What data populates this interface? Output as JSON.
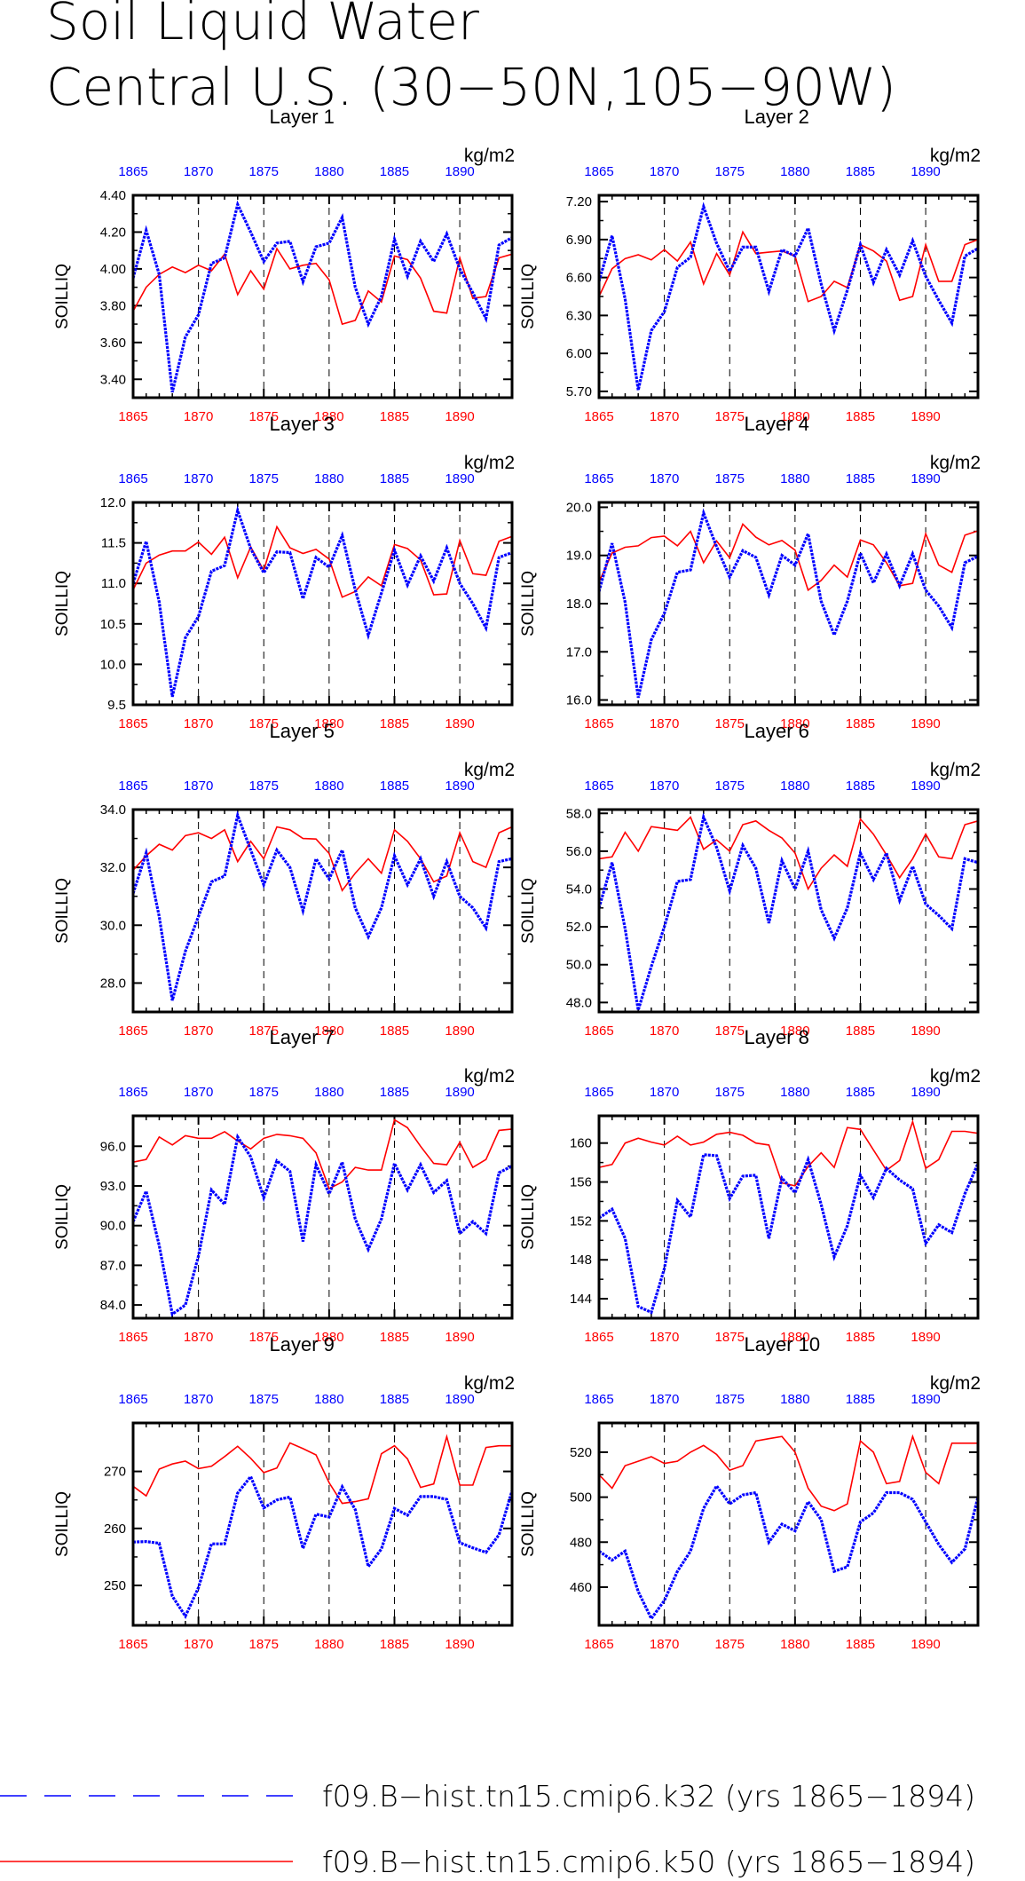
{
  "title": [
    "Soil Liquid Water",
    "Central U.S. (30−50N,105−90W)"
  ],
  "units": "kg/m2",
  "ylabel": "SOILLIQ",
  "colors": {
    "k32": "#0000ff",
    "k50": "#ff0000"
  },
  "xaxis": {
    "range": [
      1865,
      1894
    ],
    "ticks": [
      1865,
      1870,
      1875,
      1880,
      1885,
      1890
    ],
    "dashed_gridlines": [
      1870,
      1875,
      1880,
      1885,
      1890
    ]
  },
  "legend": [
    {
      "label": "f09.B−hist.tn15.cmip6.k32 (yrs 1865−1894)",
      "style": "dashed",
      "color": "#0000ff"
    },
    {
      "label": "f09.B−hist.tn15.cmip6.k50 (yrs 1865−1894)",
      "style": "solid",
      "color": "#ff0000"
    }
  ],
  "chart_data": [
    {
      "type": "line",
      "title": "Layer 1",
      "ylabel": "SOILLIQ",
      "units": "kg/m2",
      "ylim": [
        3.3,
        4.4
      ],
      "yticks": [
        3.4,
        3.6,
        3.8,
        4.0,
        4.2,
        4.4
      ],
      "ytick_labels": [
        "3.40",
        "3.60",
        "3.80",
        "4.00",
        "4.20",
        "4.40"
      ],
      "series": [
        {
          "values": [
            3.95,
            4.21,
            3.97,
            3.33,
            3.63,
            3.75,
            4.03,
            4.06,
            4.35,
            4.2,
            4.04,
            4.14,
            4.15,
            3.93,
            4.12,
            4.14,
            4.28,
            3.9,
            3.7,
            3.85,
            4.16,
            3.96,
            4.15,
            4.04,
            4.19,
            4.0,
            3.87,
            3.73,
            4.13,
            4.17
          ]
        },
        {
          "values": [
            3.77,
            3.9,
            3.97,
            4.01,
            3.98,
            4.02,
            3.99,
            4.08,
            3.86,
            3.99,
            3.89,
            4.11,
            4.0,
            4.02,
            4.03,
            3.94,
            3.7,
            3.72,
            3.88,
            3.82,
            4.07,
            4.05,
            3.95,
            3.77,
            3.76,
            4.06,
            3.84,
            3.85,
            4.06,
            4.08
          ]
        }
      ]
    },
    {
      "type": "line",
      "title": "Layer 2",
      "ylabel": "SOILLIQ",
      "units": "kg/m2",
      "ylim": [
        5.65,
        7.25
      ],
      "yticks": [
        5.7,
        6.0,
        6.3,
        6.6,
        6.9,
        7.2
      ],
      "ytick_labels": [
        "5.70",
        "6.00",
        "6.30",
        "6.60",
        "6.90",
        "7.20"
      ],
      "series": [
        {
          "values": [
            6.57,
            6.93,
            6.43,
            5.71,
            6.18,
            6.33,
            6.68,
            6.76,
            7.16,
            6.87,
            6.65,
            6.84,
            6.84,
            6.49,
            6.82,
            6.77,
            6.99,
            6.55,
            6.18,
            6.5,
            6.86,
            6.56,
            6.82,
            6.62,
            6.89,
            6.61,
            6.42,
            6.24,
            6.77,
            6.83
          ]
        },
        {
          "values": [
            6.45,
            6.67,
            6.75,
            6.78,
            6.74,
            6.82,
            6.73,
            6.88,
            6.55,
            6.79,
            6.62,
            6.96,
            6.79,
            6.8,
            6.81,
            6.77,
            6.41,
            6.45,
            6.57,
            6.52,
            6.86,
            6.81,
            6.73,
            6.42,
            6.45,
            6.86,
            6.57,
            6.57,
            6.86,
            6.9
          ]
        }
      ]
    },
    {
      "type": "line",
      "title": "Layer 3",
      "ylabel": "SOILLIQ",
      "units": "kg/m2",
      "ylim": [
        9.5,
        12.0
      ],
      "yticks": [
        9.5,
        10.0,
        10.5,
        11.0,
        11.5,
        12.0
      ],
      "ytick_labels": [
        "9.5",
        "10.0",
        "10.5",
        "11.0",
        "11.5",
        "12.0"
      ],
      "series": [
        {
          "values": [
            11.0,
            11.52,
            10.77,
            9.6,
            10.33,
            10.59,
            11.15,
            11.22,
            11.9,
            11.43,
            11.13,
            11.39,
            11.38,
            10.81,
            11.32,
            11.2,
            11.59,
            10.92,
            10.36,
            10.88,
            11.41,
            10.98,
            11.34,
            11.03,
            11.44,
            11.0,
            10.75,
            10.45,
            11.32,
            11.38
          ]
        },
        {
          "values": [
            10.92,
            11.25,
            11.35,
            11.4,
            11.4,
            11.51,
            11.36,
            11.57,
            11.07,
            11.45,
            11.16,
            11.7,
            11.44,
            11.37,
            11.42,
            11.3,
            10.83,
            10.9,
            11.08,
            10.97,
            11.48,
            11.43,
            11.29,
            10.86,
            10.87,
            11.53,
            11.12,
            11.1,
            11.52,
            11.58
          ]
        }
      ]
    },
    {
      "type": "line",
      "title": "Layer 4",
      "ylabel": "SOILLIQ",
      "units": "kg/m2",
      "ylim": [
        15.9,
        20.1
      ],
      "yticks": [
        16.0,
        17.0,
        18.0,
        19.0,
        20.0
      ],
      "ytick_labels": [
        "16.0",
        "17.0",
        "18.0",
        "19.0",
        "20.0"
      ],
      "series": [
        {
          "values": [
            18.25,
            19.25,
            18.03,
            16.05,
            17.25,
            17.8,
            18.65,
            18.7,
            19.88,
            19.18,
            18.55,
            19.1,
            18.96,
            18.18,
            19.0,
            18.8,
            19.45,
            18.05,
            17.35,
            18.05,
            19.05,
            18.43,
            19.03,
            18.37,
            19.03,
            18.28,
            17.95,
            17.5,
            18.85,
            18.98
          ]
        },
        {
          "values": [
            18.45,
            19.05,
            19.17,
            19.2,
            19.37,
            19.4,
            19.2,
            19.5,
            18.85,
            19.3,
            18.95,
            19.65,
            19.38,
            19.22,
            19.31,
            19.11,
            18.28,
            18.48,
            18.8,
            18.55,
            19.32,
            19.22,
            18.85,
            18.37,
            18.42,
            19.45,
            18.8,
            18.65,
            19.42,
            19.51
          ]
        }
      ]
    },
    {
      "type": "line",
      "title": "Layer 5",
      "ylabel": "SOILLIQ",
      "units": "kg/m2",
      "ylim": [
        27.0,
        34.0
      ],
      "yticks": [
        28.0,
        30.0,
        32.0,
        34.0
      ],
      "ytick_labels": [
        "28.0",
        "30.0",
        "32.0",
        "34.0"
      ],
      "series": [
        {
          "values": [
            31.1,
            32.5,
            30.3,
            27.4,
            29.1,
            30.3,
            31.5,
            31.7,
            33.8,
            32.6,
            31.4,
            32.6,
            32.0,
            30.5,
            32.3,
            31.6,
            32.6,
            30.6,
            29.6,
            30.6,
            32.4,
            31.4,
            32.3,
            31.0,
            32.2,
            31.0,
            30.6,
            29.9,
            32.2,
            32.3
          ]
        },
        {
          "values": [
            31.9,
            32.4,
            32.8,
            32.6,
            33.1,
            33.2,
            33.0,
            33.3,
            32.2,
            32.9,
            32.3,
            33.4,
            33.3,
            33.0,
            32.98,
            32.48,
            31.2,
            31.8,
            32.3,
            31.8,
            33.3,
            32.9,
            32.3,
            31.5,
            31.7,
            33.2,
            32.2,
            32.0,
            33.2,
            33.4
          ]
        }
      ]
    },
    {
      "type": "line",
      "title": "Layer 6",
      "ylabel": "SOILLIQ",
      "units": "kg/m2",
      "ylim": [
        47.5,
        58.2
      ],
      "yticks": [
        48.0,
        50.0,
        52.0,
        54.0,
        56.0,
        58.0
      ],
      "ytick_labels": [
        "48.0",
        "50.0",
        "52.0",
        "54.0",
        "56.0",
        "58.0"
      ],
      "series": [
        {
          "values": [
            53.0,
            55.4,
            51.9,
            47.6,
            49.9,
            52.0,
            54.4,
            54.5,
            57.8,
            56.2,
            53.9,
            56.3,
            55.1,
            52.2,
            55.5,
            54.0,
            56.0,
            52.9,
            51.4,
            53.0,
            55.9,
            54.5,
            55.9,
            53.4,
            55.2,
            53.2,
            52.6,
            51.9,
            55.6,
            55.4
          ]
        },
        {
          "values": [
            55.6,
            55.7,
            57.0,
            56.0,
            57.3,
            57.2,
            57.1,
            57.8,
            56.1,
            56.6,
            56.0,
            57.4,
            57.6,
            57.1,
            56.7,
            55.9,
            54.0,
            55.1,
            55.8,
            55.2,
            57.7,
            56.9,
            55.8,
            54.6,
            55.6,
            56.9,
            55.7,
            55.6,
            57.4,
            57.6
          ]
        }
      ]
    },
    {
      "type": "line",
      "title": "Layer 7",
      "ylabel": "SOILLIQ",
      "units": "kg/m2",
      "ylim": [
        83.0,
        98.3
      ],
      "yticks": [
        84.0,
        87.0,
        90.0,
        93.0,
        96.0
      ],
      "ytick_labels": [
        "84.0",
        "87.0",
        "90.0",
        "93.0",
        "96.0"
      ],
      "series": [
        {
          "values": [
            90.3,
            92.6,
            88.5,
            83.3,
            84.0,
            87.7,
            92.7,
            91.6,
            96.7,
            95.2,
            92.1,
            94.9,
            94.1,
            88.8,
            94.6,
            92.4,
            94.8,
            90.5,
            88.2,
            90.5,
            94.7,
            92.7,
            94.6,
            92.5,
            93.4,
            89.4,
            90.3,
            89.4,
            94.0,
            94.5
          ]
        },
        {
          "values": [
            94.8,
            95.0,
            96.7,
            96.1,
            96.8,
            96.6,
            96.6,
            97.1,
            96.4,
            95.8,
            96.6,
            96.9,
            96.8,
            96.6,
            95.5,
            92.8,
            93.3,
            94.4,
            94.2,
            94.2,
            98.0,
            97.4,
            96.0,
            94.7,
            94.6,
            96.3,
            94.4,
            95.0,
            97.2,
            97.3
          ]
        }
      ]
    },
    {
      "type": "line",
      "title": "Layer 8",
      "ylabel": "SOILLIQ",
      "units": "kg/m2",
      "ylim": [
        142.0,
        162.8
      ],
      "yticks": [
        144,
        148,
        152,
        156,
        160
      ],
      "ytick_labels": [
        "144",
        "148",
        "152",
        "156",
        "160"
      ],
      "series": [
        {
          "values": [
            152.3,
            153.2,
            150.2,
            143.2,
            142.6,
            147.1,
            154.1,
            152.4,
            158.8,
            158.7,
            154.3,
            156.6,
            156.7,
            150.2,
            156.4,
            154.9,
            158.3,
            153.7,
            148.3,
            151.5,
            156.7,
            154.4,
            157.4,
            156.2,
            155.3,
            149.7,
            151.6,
            150.8,
            154.8,
            157.9
          ]
        },
        {
          "values": [
            157.5,
            157.8,
            160.0,
            160.5,
            160.1,
            159.8,
            160.7,
            159.8,
            160.1,
            160.9,
            161.1,
            160.8,
            160.0,
            159.8,
            155.9,
            155.6,
            157.6,
            159.0,
            157.5,
            161.6,
            161.4,
            159.3,
            157.2,
            158.2,
            162.2,
            157.4,
            158.3,
            161.2,
            161.2,
            161.0
          ]
        }
      ]
    },
    {
      "type": "line",
      "title": "Layer 9",
      "ylabel": "SOILLIQ",
      "units": "kg/m2",
      "ylim": [
        243.0,
        278.5
      ],
      "yticks": [
        250,
        260,
        270
      ],
      "ytick_labels": [
        "250",
        "260",
        "270"
      ],
      "series": [
        {
          "values": [
            257.6,
            257.7,
            257.4,
            248.1,
            244.6,
            249.6,
            257.3,
            257.3,
            266.2,
            269.1,
            263.6,
            265.0,
            265.5,
            256.5,
            262.5,
            262.0,
            267.3,
            263.3,
            253.3,
            256.4,
            263.5,
            262.3,
            265.6,
            265.6,
            265.1,
            257.5,
            256.6,
            255.8,
            258.9,
            266.6
          ]
        },
        {
          "values": [
            267.4,
            265.7,
            270.4,
            271.3,
            271.8,
            270.5,
            270.9,
            272.6,
            274.4,
            272.3,
            269.8,
            270.6,
            275.0,
            274.0,
            272.9,
            268.0,
            264.4,
            264.7,
            265.2,
            273.1,
            274.5,
            272.2,
            267.2,
            267.8,
            276.1,
            267.6,
            267.6,
            274.2,
            274.5,
            274.5
          ]
        }
      ]
    },
    {
      "type": "line",
      "title": "Layer 10",
      "ylabel": "SOILLIQ",
      "units": "kg/m2",
      "ylim": [
        443.0,
        533.0
      ],
      "yticks": [
        460,
        480,
        500,
        520
      ],
      "ytick_labels": [
        "460",
        "480",
        "500",
        "520"
      ],
      "series": [
        {
          "values": [
            476,
            472,
            476,
            458,
            446,
            454,
            467,
            476,
            495,
            505,
            497,
            501,
            502,
            480,
            488,
            485,
            498,
            490,
            467,
            469,
            489,
            493,
            502,
            502,
            499,
            489,
            479,
            471,
            477,
            500
          ]
        },
        {
          "values": [
            510,
            504,
            514,
            516,
            518,
            515,
            516,
            520,
            523,
            519,
            512,
            514,
            525,
            526,
            527,
            520,
            504,
            496,
            494,
            497,
            525,
            520,
            506,
            507,
            527,
            511,
            506,
            524,
            524,
            524
          ]
        }
      ]
    }
  ]
}
